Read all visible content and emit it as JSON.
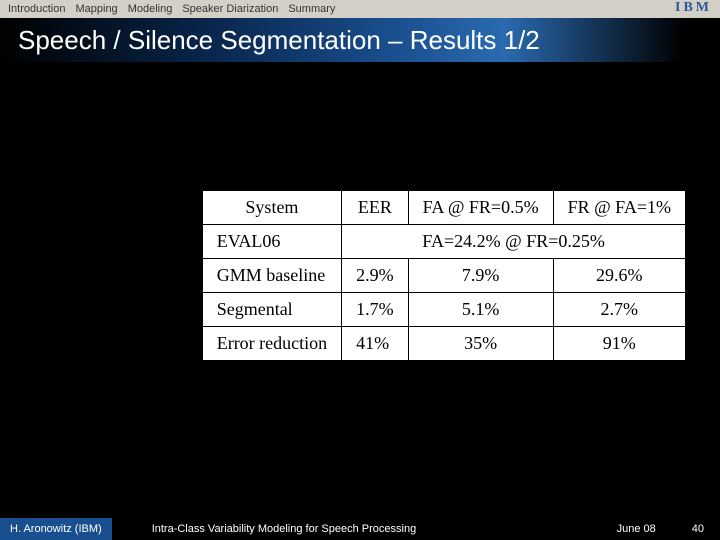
{
  "nav": {
    "items": [
      "Introduction",
      "Mapping",
      "Modeling",
      "Speaker Diarization",
      "Summary"
    ]
  },
  "logo": "IBM",
  "title": "Speech / Silence Segmentation – Results 1/2",
  "table": {
    "headers": {
      "system": "System",
      "eer": "EER",
      "fa": "FA @ FR=0.5%",
      "fr": "FR @ FA=1%"
    },
    "rows": {
      "eval06": {
        "label": "EVAL06",
        "merged": "FA=24.2% @ FR=0.25%"
      },
      "gmm": {
        "label": "GMM baseline",
        "eer": "2.9%",
        "fa": "7.9%",
        "fr": "29.6%"
      },
      "seg": {
        "label": "Segmental",
        "eer": "1.7%",
        "fa": "5.1%",
        "fr": "2.7%"
      },
      "err": {
        "label": "Error reduction",
        "eer": "41%",
        "fa": "35%",
        "fr": "91%"
      }
    }
  },
  "footer": {
    "author": "H. Aronowitz (IBM)",
    "title": "Intra-Class Variability Modeling for Speech Processing",
    "date": "June 08",
    "page": "40"
  },
  "colors": {
    "nav_bg": "#d4d0c8",
    "title_grad_start": "#000000",
    "title_grad_mid": "#1a4f8f",
    "body_bg": "#000000",
    "table_bg": "#ffffff",
    "footer_accent": "#1a4f8f"
  }
}
